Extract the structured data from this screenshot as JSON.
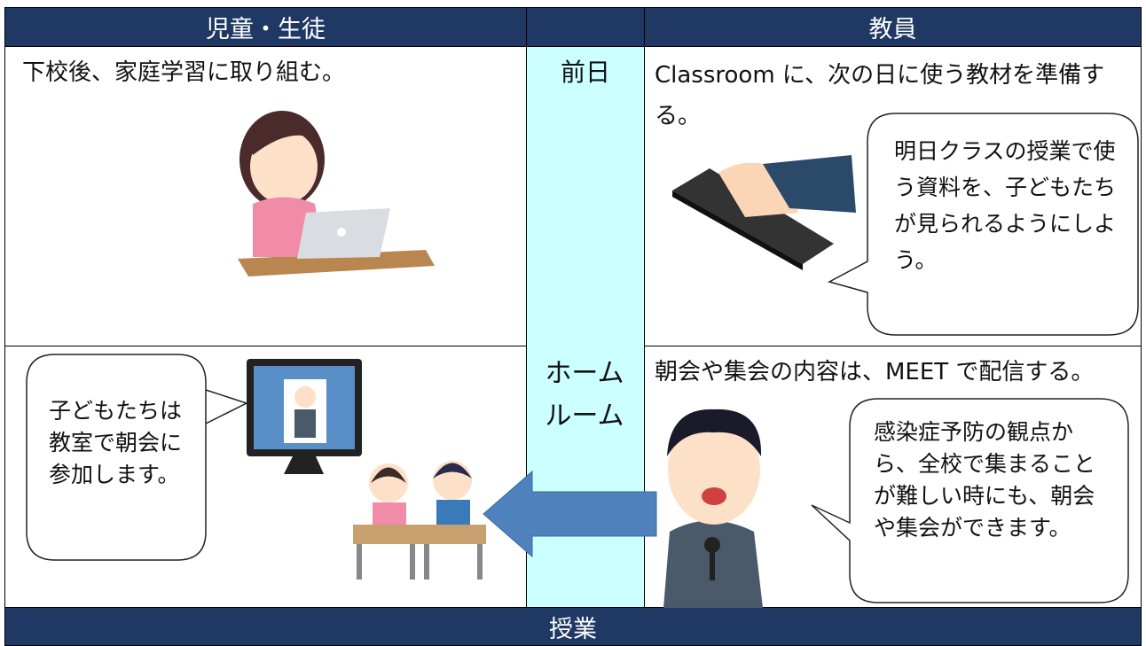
{
  "header": {
    "student": "児童・生徒",
    "teacher": "教員"
  },
  "rows": [
    {
      "label": "前日",
      "student": "下校後、家庭学習に取り組む。",
      "teacher": "Classroom に、次の日に使う教材を準備する。",
      "bubble": "明日クラスの授業で使う資料を、子どもたちが見られるようにしよう。"
    },
    {
      "label": "ホームルーム",
      "student_bubble": "子どもたちは教室で朝会に参加します。",
      "teacher": "朝会や集会の内容は、MEET で配信する。",
      "bubble": "感染症予防の観点から、全校で集まることが難しい時にも、朝会や集会ができます。"
    }
  ],
  "footer": "授業"
}
